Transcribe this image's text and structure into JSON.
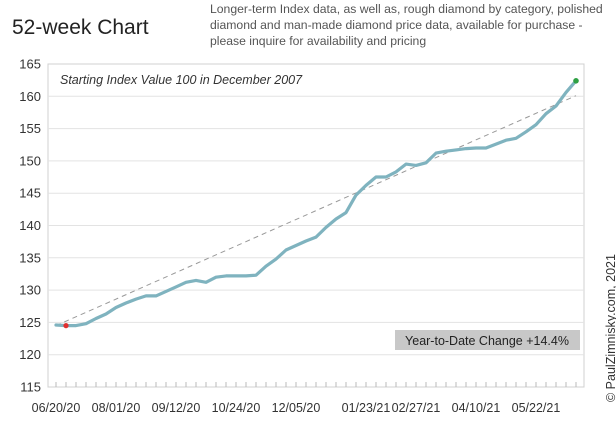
{
  "chart_data": {
    "type": "line",
    "title": "52-week Chart",
    "subtitle": "Longer-term Index data, as well as, rough diamond by category, polished diamond and man-made diamond price data, available for purchase - please inquire for availability and pricing",
    "annotation": "Starting Index Value 100 in December 2007",
    "ytd_label": "Year-to-Date Change +14.4%",
    "copyright": "© PaulZimnisky.com, 2021",
    "xlabel": "",
    "ylabel": "",
    "ylim": [
      115,
      165
    ],
    "yticks": [
      115,
      120,
      125,
      130,
      135,
      140,
      145,
      150,
      155,
      160,
      165
    ],
    "x_tick_labels": [
      "06/20/20",
      "08/01/20",
      "09/12/20",
      "10/24/20",
      "12/05/20",
      "01/23/21",
      "02/27/21",
      "04/10/21",
      "05/22/21"
    ],
    "x_tick_positions": [
      0,
      6,
      12,
      18,
      24,
      31,
      36,
      42,
      48
    ],
    "x_count": 53,
    "grid": "horizontal",
    "colors": {
      "line": "#7fb3bf",
      "trend": "#999999",
      "start_marker": "#e03030",
      "end_marker": "#2ea043",
      "grid": "#e3e3e3",
      "box": "#c8c8c8"
    },
    "series": [
      {
        "values": [
          124.6,
          124.5,
          124.5,
          124.8,
          125.6,
          126.3,
          127.3,
          128.0,
          128.6,
          129.1,
          129.1,
          129.8,
          130.5,
          131.2,
          131.5,
          131.2,
          132.0,
          132.2,
          132.2,
          132.2,
          132.3,
          133.7,
          134.8,
          136.2,
          136.9,
          137.6,
          138.2,
          139.7,
          141.0,
          142.0,
          144.7,
          146.2,
          147.5,
          147.5,
          148.3,
          149.5,
          149.3,
          149.7,
          151.2,
          151.5,
          151.7,
          151.9,
          152.0,
          152.0,
          152.6,
          153.2,
          153.5,
          154.5,
          155.6,
          157.3,
          158.5,
          160.6,
          162.4
        ]
      },
      {
        "name": "trend",
        "values": [
          124.5,
          160.1
        ]
      }
    ]
  }
}
